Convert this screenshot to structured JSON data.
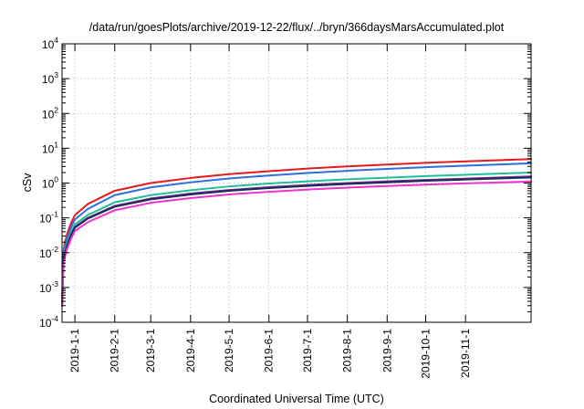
{
  "chart_data": {
    "type": "line",
    "title": "/data/run/goesPlots/archive/2019-12-22/flux/../bryn/366daysMarsAccumulated.plot",
    "xlabel": "Coordinated Universal Time (UTC)",
    "ylabel": "cSv",
    "yscale": "log",
    "ylim": [
      0.0001,
      10000
    ],
    "xlim": [
      "2018-12-22",
      "2019-12-22"
    ],
    "grid": true,
    "legend": "none",
    "x_ticks": [
      "2019-1-1",
      "2019-2-1",
      "2019-3-1",
      "2019-4-1",
      "2019-5-1",
      "2019-6-1",
      "2019-7-1",
      "2019-8-1",
      "2019-9-1",
      "2019-10-1",
      "2019-11-1"
    ],
    "y_ticks": [
      {
        "base": "10",
        "exp": "-4"
      },
      {
        "base": "10",
        "exp": "-3"
      },
      {
        "base": "10",
        "exp": "-2"
      },
      {
        "base": "10",
        "exp": "-1"
      },
      {
        "base": "10",
        "exp": "0"
      },
      {
        "base": "10",
        "exp": "1"
      },
      {
        "base": "10",
        "exp": "2"
      },
      {
        "base": "10",
        "exp": "3"
      },
      {
        "base": "10",
        "exp": "4"
      }
    ],
    "x": [
      "2018-12-22",
      "2018-12-23",
      "2018-12-24",
      "2018-12-26",
      "2018-12-29",
      "2019-1-1",
      "2019-1-11",
      "2019-2-1",
      "2019-3-1",
      "2019-4-1",
      "2019-5-1",
      "2019-6-1",
      "2019-7-1",
      "2019-8-1",
      "2019-9-1",
      "2019-10-1",
      "2019-11-1",
      "2019-12-22"
    ],
    "series": [
      {
        "color": "#e41a1c",
        "values": [
          0.0003,
          0.01,
          0.018,
          0.035,
          0.07,
          0.12,
          0.25,
          0.6,
          1.0,
          1.4,
          1.8,
          2.2,
          2.6,
          3.0,
          3.4,
          3.8,
          4.2,
          4.9
        ]
      },
      {
        "color": "#2b6fe0",
        "values": [
          0.0003,
          0.008,
          0.014,
          0.027,
          0.053,
          0.09,
          0.18,
          0.45,
          0.75,
          1.05,
          1.35,
          1.65,
          1.95,
          2.25,
          2.55,
          2.85,
          3.15,
          3.7
        ]
      },
      {
        "color": "#1fbf9a",
        "values": [
          0.0003,
          0.006,
          0.01,
          0.02,
          0.038,
          0.065,
          0.12,
          0.28,
          0.45,
          0.62,
          0.8,
          0.97,
          1.12,
          1.28,
          1.43,
          1.58,
          1.73,
          2.0
        ]
      },
      {
        "color": "#7a2a8a",
        "values": [
          0.0003,
          0.005,
          0.009,
          0.017,
          0.033,
          0.055,
          0.1,
          0.22,
          0.36,
          0.5,
          0.63,
          0.76,
          0.88,
          1.0,
          1.12,
          1.23,
          1.34,
          1.55
        ]
      },
      {
        "color": "#1c2a5a",
        "values": [
          0.0003,
          0.005,
          0.0085,
          0.016,
          0.031,
          0.052,
          0.095,
          0.21,
          0.34,
          0.47,
          0.6,
          0.72,
          0.83,
          0.94,
          1.05,
          1.16,
          1.26,
          1.45
        ]
      },
      {
        "color": "#ee33cc",
        "values": [
          0.0003,
          0.004,
          0.007,
          0.013,
          0.025,
          0.042,
          0.075,
          0.165,
          0.27,
          0.37,
          0.47,
          0.56,
          0.65,
          0.74,
          0.82,
          0.9,
          0.98,
          1.1
        ]
      }
    ]
  }
}
